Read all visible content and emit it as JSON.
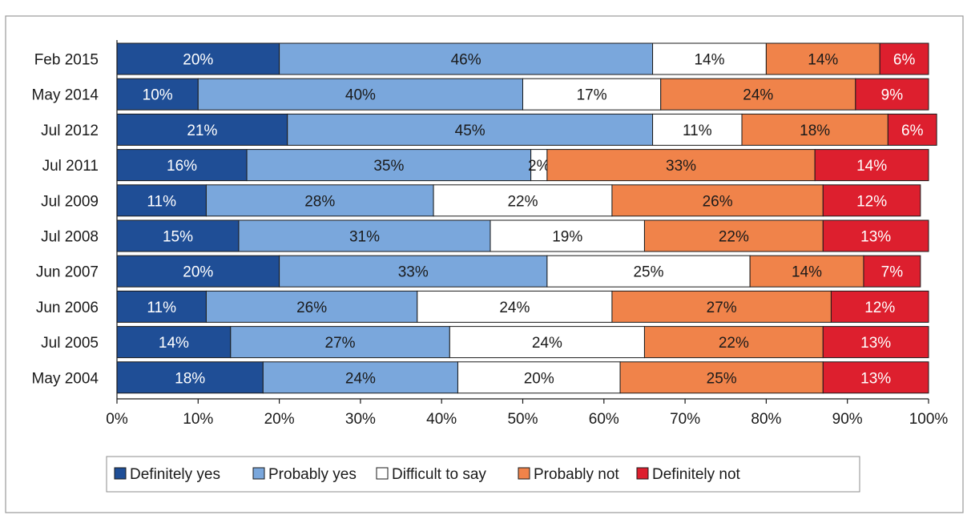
{
  "chart_data": {
    "type": "bar",
    "orientation": "horizontal",
    "stacked": true,
    "categories": [
      "Feb 2015",
      "May 2014",
      "Jul 2012",
      "Jul 2011",
      "Jul 2009",
      "Jul 2008",
      "Jun 2007",
      "Jun 2006",
      "Jul 2005",
      "May 2004"
    ],
    "series": [
      {
        "name": "Definitely yes",
        "color": "#1f4e96",
        "label_color": "#ffffff",
        "values": [
          20,
          10,
          21,
          16,
          11,
          15,
          20,
          11,
          14,
          18
        ]
      },
      {
        "name": "Probably yes",
        "color": "#7aa7dc",
        "label_color": "#1a1a1a",
        "values": [
          46,
          40,
          45,
          35,
          28,
          31,
          33,
          26,
          27,
          24
        ]
      },
      {
        "name": "Difficult to say",
        "color": "#ffffff",
        "label_color": "#1a1a1a",
        "values": [
          14,
          17,
          11,
          2,
          22,
          19,
          25,
          24,
          24,
          20
        ]
      },
      {
        "name": "Probably not",
        "color": "#f0834a",
        "label_color": "#1a1a1a",
        "values": [
          14,
          24,
          18,
          33,
          26,
          22,
          14,
          27,
          22,
          25
        ]
      },
      {
        "name": "Definitely not",
        "color": "#dd1f2e",
        "label_color": "#ffffff",
        "values": [
          6,
          9,
          6,
          14,
          12,
          13,
          7,
          12,
          13,
          13
        ]
      }
    ],
    "xlim": [
      0,
      100
    ],
    "x_ticks": [
      "0%",
      "10%",
      "20%",
      "30%",
      "40%",
      "50%",
      "60%",
      "70%",
      "80%",
      "90%",
      "100%"
    ],
    "legend_position": "bottom",
    "grid": false,
    "title": "",
    "xlabel": "",
    "ylabel": ""
  }
}
